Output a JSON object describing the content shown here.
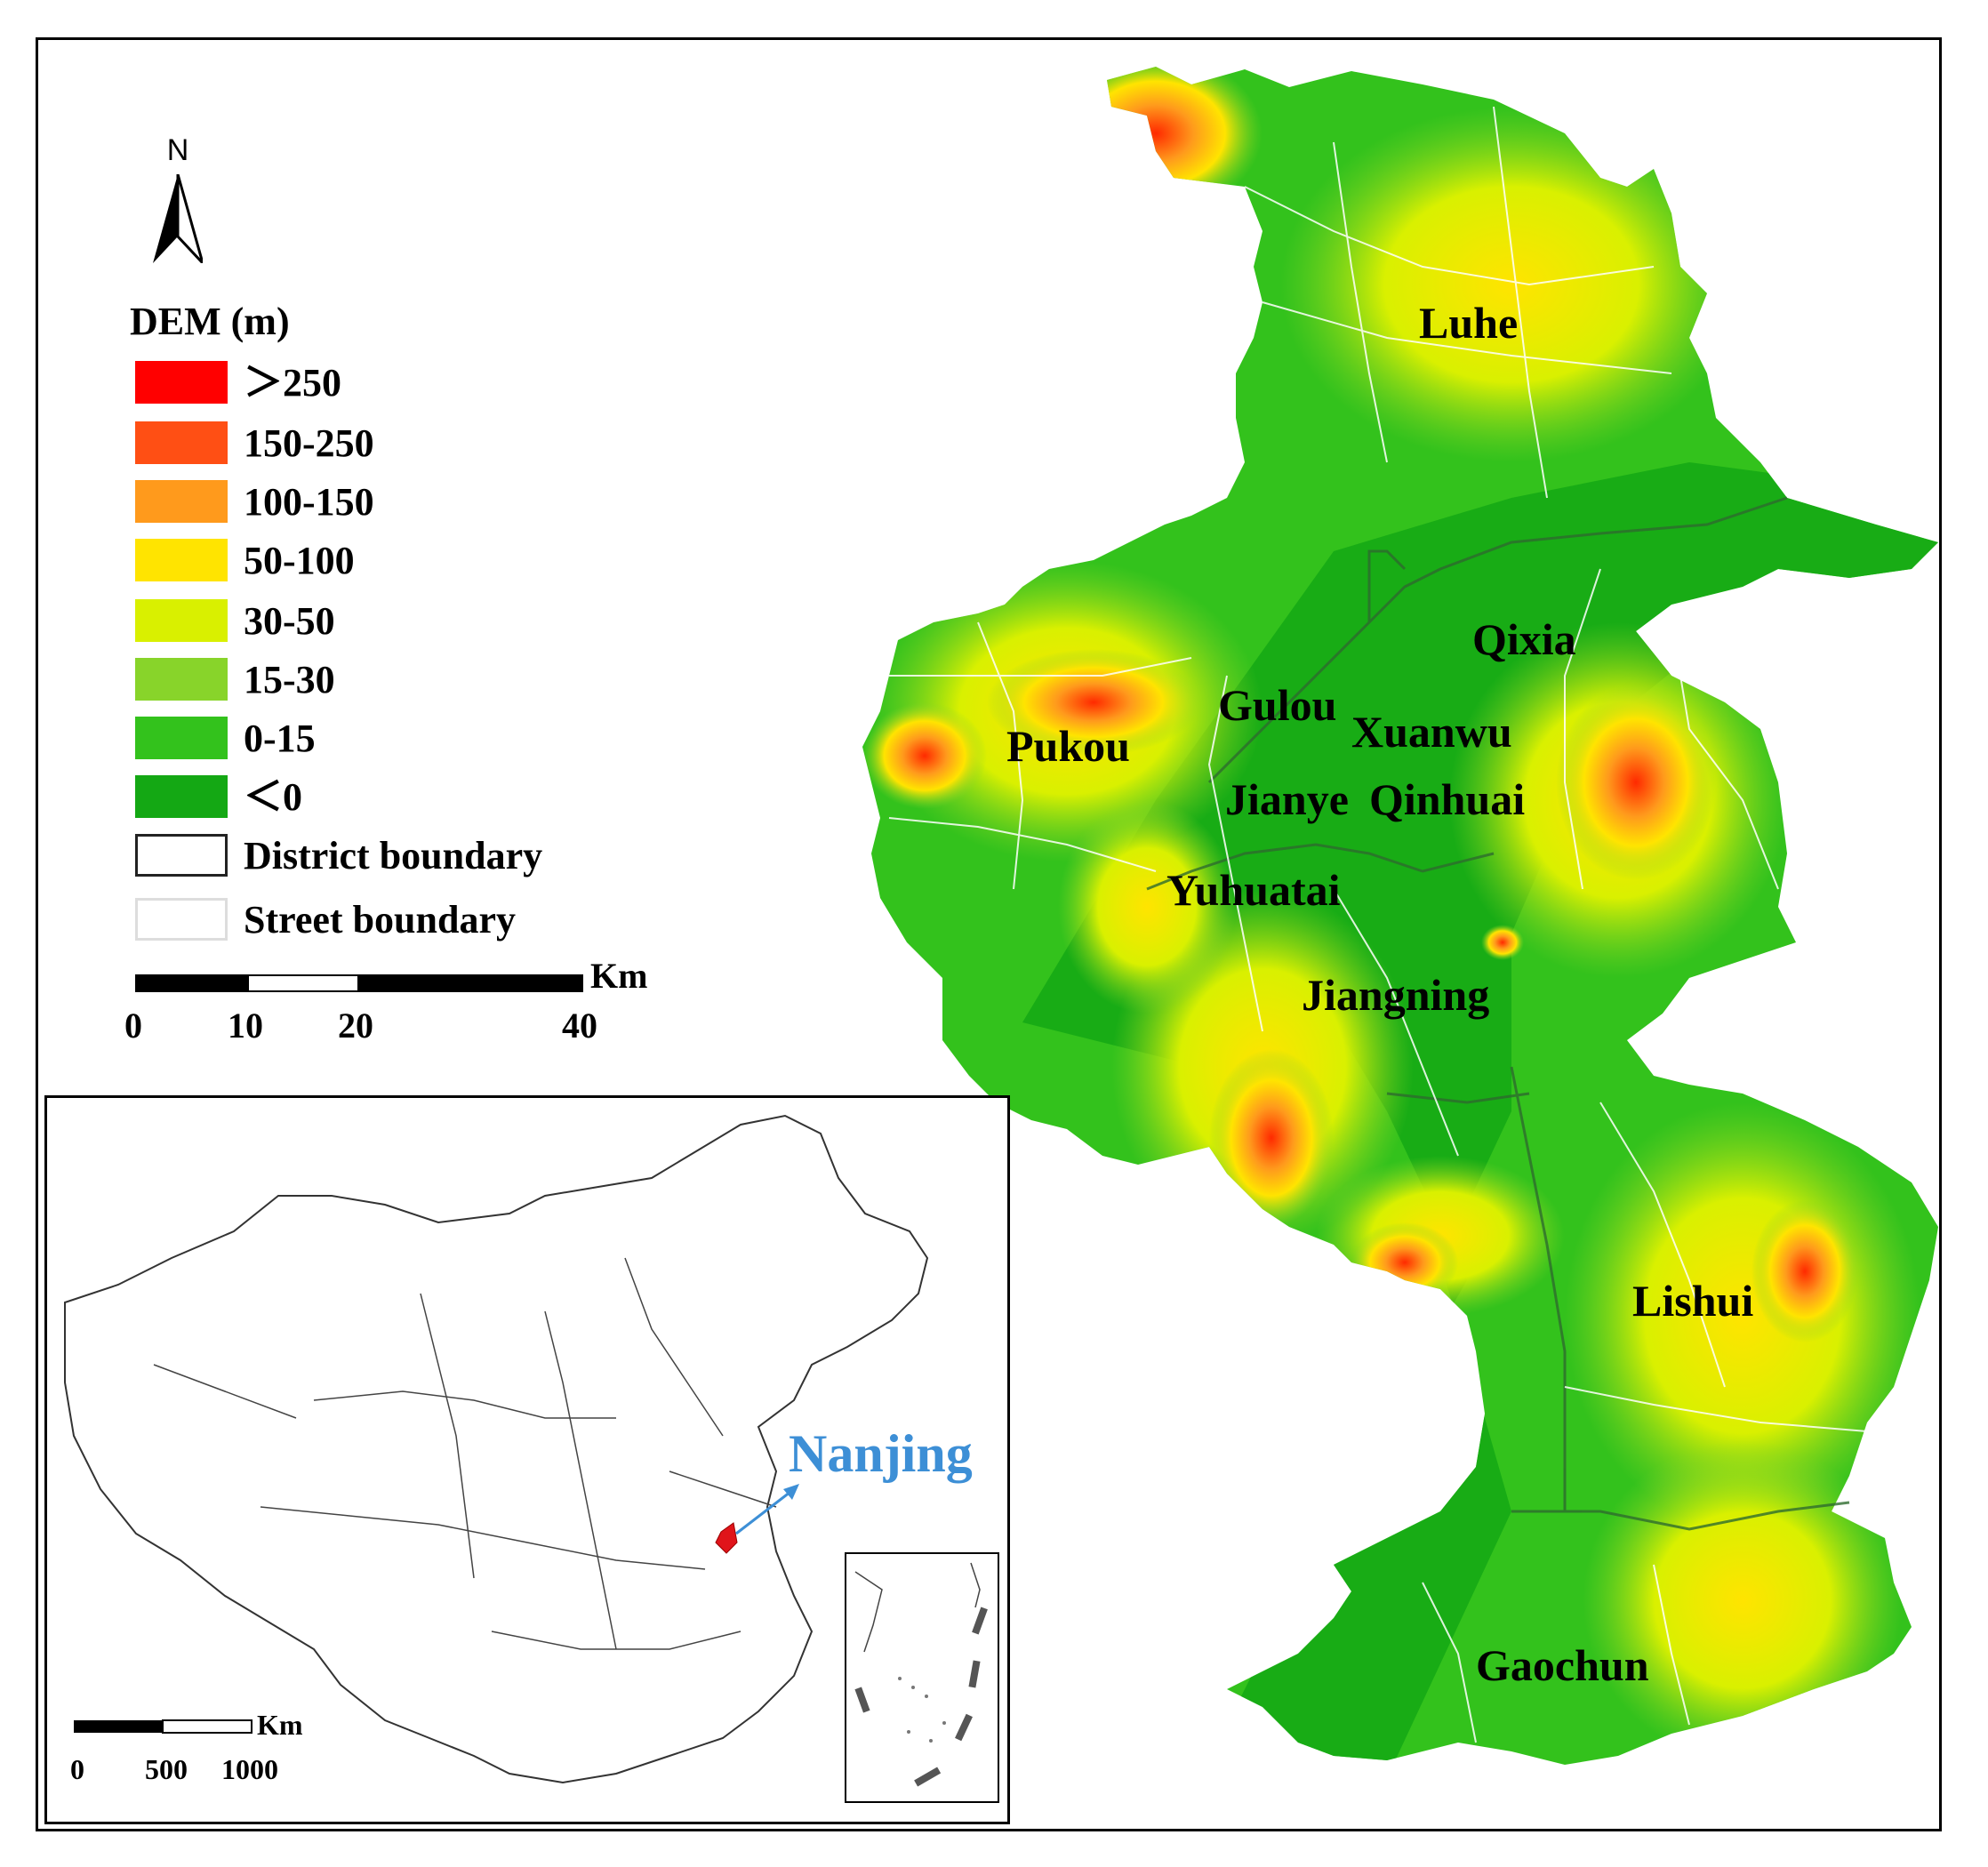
{
  "north_arrow": {
    "label": "N",
    "icon": "north-arrow-icon"
  },
  "legend": {
    "title": "DEM (m)",
    "items": [
      {
        "label": "＞250",
        "color": "#ff0000"
      },
      {
        "label": "150-250",
        "color": "#ff4f14"
      },
      {
        "label": "100-150",
        "color": "#ff9a1c"
      },
      {
        "label": "50-100",
        "color": "#ffe400"
      },
      {
        "label": "30-50",
        "color": "#d9f000"
      },
      {
        "label": "15-30",
        "color": "#88d42a"
      },
      {
        "label": "0-15",
        "color": "#33c21c"
      },
      {
        "label": "＜0",
        "color": "#14a814"
      },
      {
        "label": "District boundary",
        "color": "#ffffff"
      },
      {
        "label": "Street boundary",
        "color": "#ffffff"
      }
    ]
  },
  "scale_bar": {
    "unit": "Km",
    "ticks": [
      "0",
      "10",
      "20",
      "40"
    ]
  },
  "districts": [
    "Luhe",
    "Qixia",
    "Gulou",
    "Xuanwu",
    "Pukou",
    "Jianye",
    "Qinhuai",
    "Yuhuatai",
    "Jiangning",
    "Lishui",
    "Gaochun"
  ],
  "inset": {
    "highlight_label": "Nanjing",
    "highlight_color": "#3d8fd6",
    "scale_bar": {
      "unit": "Km",
      "ticks": [
        "0",
        "500",
        "1000"
      ]
    }
  }
}
